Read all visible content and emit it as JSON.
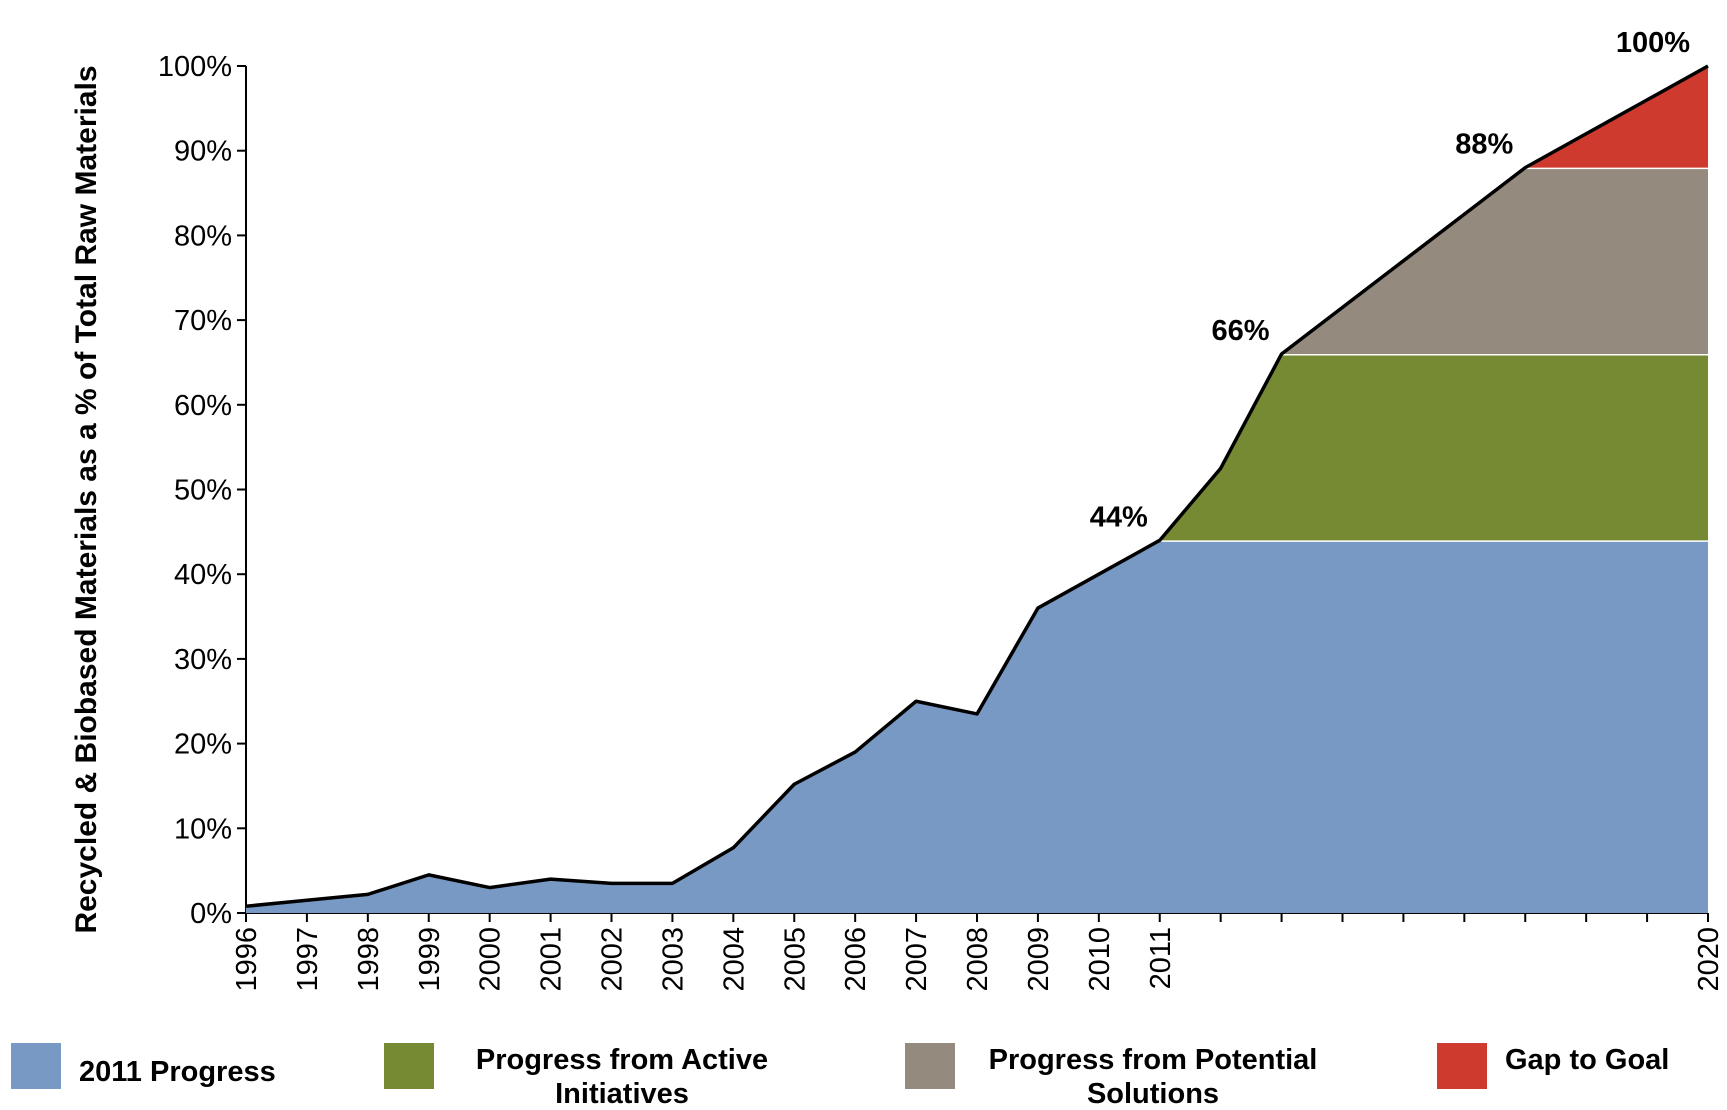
{
  "chart_data": {
    "type": "stacked_area",
    "y_label": "Recycled & Biobased Materials as a % of Total Raw Materials",
    "x": [
      1996,
      1997,
      1998,
      1999,
      2000,
      2001,
      2002,
      2003,
      2004,
      2005,
      2006,
      2007,
      2008,
      2009,
      2010,
      2011,
      2012,
      2013,
      2014,
      2015,
      2016,
      2017,
      2018,
      2019,
      2020
    ],
    "xlim": [
      1996,
      2020
    ],
    "xticks": [
      1996,
      1997,
      1998,
      1999,
      2000,
      2001,
      2002,
      2003,
      2004,
      2005,
      2006,
      2007,
      2008,
      2009,
      2010,
      2011,
      2020
    ],
    "ylim": [
      0,
      100
    ],
    "yticks": [
      {
        "value": 0,
        "label": "0%"
      },
      {
        "value": 10,
        "label": "10%"
      },
      {
        "value": 20,
        "label": "20%"
      },
      {
        "value": 30,
        "label": "30%"
      },
      {
        "value": 40,
        "label": "40%"
      },
      {
        "value": 50,
        "label": "50%"
      },
      {
        "value": 60,
        "label": "60%"
      },
      {
        "value": 70,
        "label": "70%"
      },
      {
        "value": 80,
        "label": "80%"
      },
      {
        "value": 90,
        "label": "90%"
      },
      {
        "value": 100,
        "label": "100%"
      }
    ],
    "series": [
      {
        "name": "2011 Progress",
        "color": "#7899c4",
        "values": [
          0.8,
          1.5,
          2.2,
          4.5,
          3.0,
          4.0,
          3.5,
          3.5,
          7.7,
          15.2,
          19,
          25,
          23.5,
          36,
          40,
          44,
          44,
          44,
          44,
          44,
          44,
          44,
          44,
          44,
          44
        ]
      },
      {
        "name": "Progress from Active Initiatives",
        "color": "#758a33",
        "values": [
          null,
          null,
          null,
          null,
          null,
          null,
          null,
          null,
          null,
          null,
          null,
          null,
          null,
          null,
          null,
          0,
          8.5,
          22,
          22,
          22,
          22,
          22,
          22,
          22,
          22
        ]
      },
      {
        "name": "Progress from Potential Solutions",
        "color": "#948a7d",
        "values": [
          null,
          null,
          null,
          null,
          null,
          null,
          null,
          null,
          null,
          null,
          null,
          null,
          null,
          null,
          null,
          null,
          null,
          0,
          5.5,
          11,
          16.5,
          22,
          22,
          22,
          22
        ]
      },
      {
        "name": "Gap to Goal",
        "color": "#cf3a2e",
        "values": [
          null,
          null,
          null,
          null,
          null,
          null,
          null,
          null,
          null,
          null,
          null,
          null,
          null,
          null,
          null,
          null,
          null,
          null,
          null,
          null,
          null,
          0,
          4,
          8,
          12
        ]
      }
    ],
    "annotations": [
      {
        "text": "44%",
        "x": 2011,
        "y": 44
      },
      {
        "text": "66%",
        "x": 2013,
        "y": 66
      },
      {
        "text": "88%",
        "x": 2017,
        "y": 88
      },
      {
        "text": "100%",
        "x": 2020,
        "y": 100
      }
    ]
  }
}
